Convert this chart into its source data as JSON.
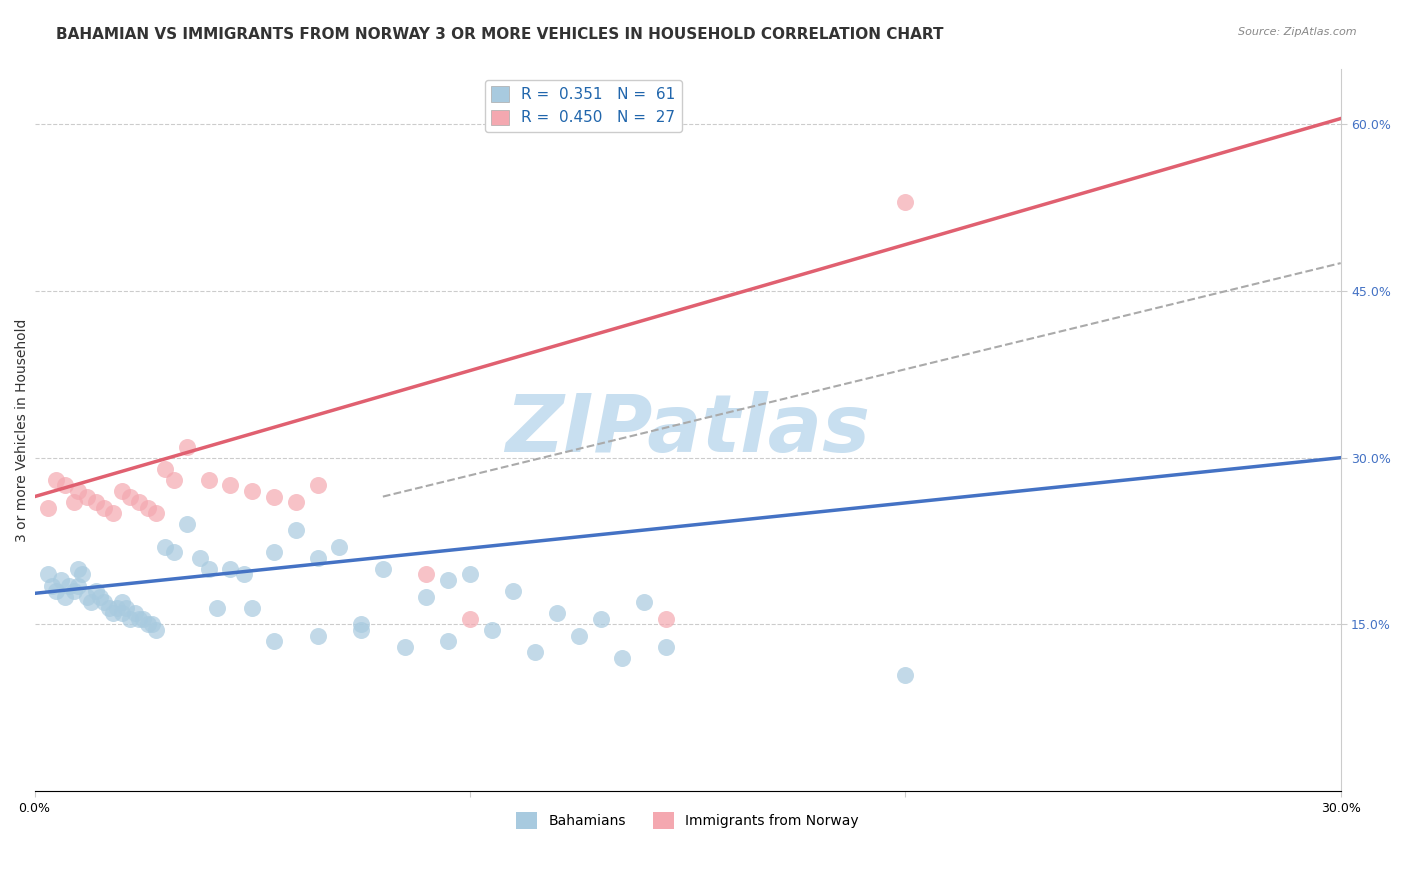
{
  "title": "BAHAMIAN VS IMMIGRANTS FROM NORWAY 3 OR MORE VEHICLES IN HOUSEHOLD CORRELATION CHART",
  "source": "Source: ZipAtlas.com",
  "ylabel": "3 or more Vehicles in Household",
  "x_min": 0.0,
  "x_max": 0.3,
  "y_min": 0.0,
  "y_max": 0.65,
  "y_ticks_right": [
    0.15,
    0.3,
    0.45,
    0.6
  ],
  "y_tick_labels_right": [
    "15.0%",
    "30.0%",
    "45.0%",
    "60.0%"
  ],
  "legend_labels": [
    "R =  0.351   N =  61",
    "R =  0.450   N =  27"
  ],
  "blue_color": "#a8cadf",
  "pink_color": "#f4a8b0",
  "blue_line_color": "#4472c4",
  "pink_line_color": "#e06070",
  "dashed_line_color": "#aaaaaa",
  "watermark": "ZIPatlas",
  "watermark_color": "#c8dff0",
  "blue_scatter_x": [
    0.003,
    0.004,
    0.005,
    0.006,
    0.007,
    0.008,
    0.009,
    0.01,
    0.01,
    0.011,
    0.012,
    0.013,
    0.014,
    0.015,
    0.016,
    0.017,
    0.018,
    0.019,
    0.02,
    0.02,
    0.021,
    0.022,
    0.023,
    0.024,
    0.025,
    0.026,
    0.027,
    0.028,
    0.03,
    0.032,
    0.035,
    0.038,
    0.04,
    0.042,
    0.045,
    0.048,
    0.05,
    0.055,
    0.06,
    0.065,
    0.07,
    0.075,
    0.08,
    0.09,
    0.095,
    0.1,
    0.11,
    0.12,
    0.13,
    0.14,
    0.055,
    0.065,
    0.075,
    0.085,
    0.095,
    0.105,
    0.115,
    0.125,
    0.135,
    0.145,
    0.2
  ],
  "blue_scatter_y": [
    0.195,
    0.185,
    0.18,
    0.19,
    0.175,
    0.185,
    0.18,
    0.2,
    0.185,
    0.195,
    0.175,
    0.17,
    0.18,
    0.175,
    0.17,
    0.165,
    0.16,
    0.165,
    0.16,
    0.17,
    0.165,
    0.155,
    0.16,
    0.155,
    0.155,
    0.15,
    0.15,
    0.145,
    0.22,
    0.215,
    0.24,
    0.21,
    0.2,
    0.165,
    0.2,
    0.195,
    0.165,
    0.215,
    0.235,
    0.21,
    0.22,
    0.15,
    0.2,
    0.175,
    0.19,
    0.195,
    0.18,
    0.16,
    0.155,
    0.17,
    0.135,
    0.14,
    0.145,
    0.13,
    0.135,
    0.145,
    0.125,
    0.14,
    0.12,
    0.13,
    0.105
  ],
  "pink_scatter_x": [
    0.003,
    0.005,
    0.007,
    0.009,
    0.01,
    0.012,
    0.014,
    0.016,
    0.018,
    0.02,
    0.022,
    0.024,
    0.026,
    0.028,
    0.03,
    0.032,
    0.035,
    0.04,
    0.045,
    0.05,
    0.055,
    0.06,
    0.065,
    0.09,
    0.1,
    0.145,
    0.2
  ],
  "pink_scatter_y": [
    0.255,
    0.28,
    0.275,
    0.26,
    0.27,
    0.265,
    0.26,
    0.255,
    0.25,
    0.27,
    0.265,
    0.26,
    0.255,
    0.25,
    0.29,
    0.28,
    0.31,
    0.28,
    0.275,
    0.27,
    0.265,
    0.26,
    0.275,
    0.195,
    0.155,
    0.155,
    0.53
  ],
  "blue_line_x": [
    0.0,
    0.3
  ],
  "blue_line_y": [
    0.178,
    0.3
  ],
  "pink_line_x": [
    0.0,
    0.3
  ],
  "pink_line_y": [
    0.265,
    0.605
  ],
  "dashed_line_x": [
    0.08,
    0.3
  ],
  "dashed_line_y": [
    0.265,
    0.475
  ],
  "grid_color": "#cccccc",
  "background_color": "#ffffff",
  "title_fontsize": 11,
  "axis_label_fontsize": 10,
  "tick_fontsize": 9
}
